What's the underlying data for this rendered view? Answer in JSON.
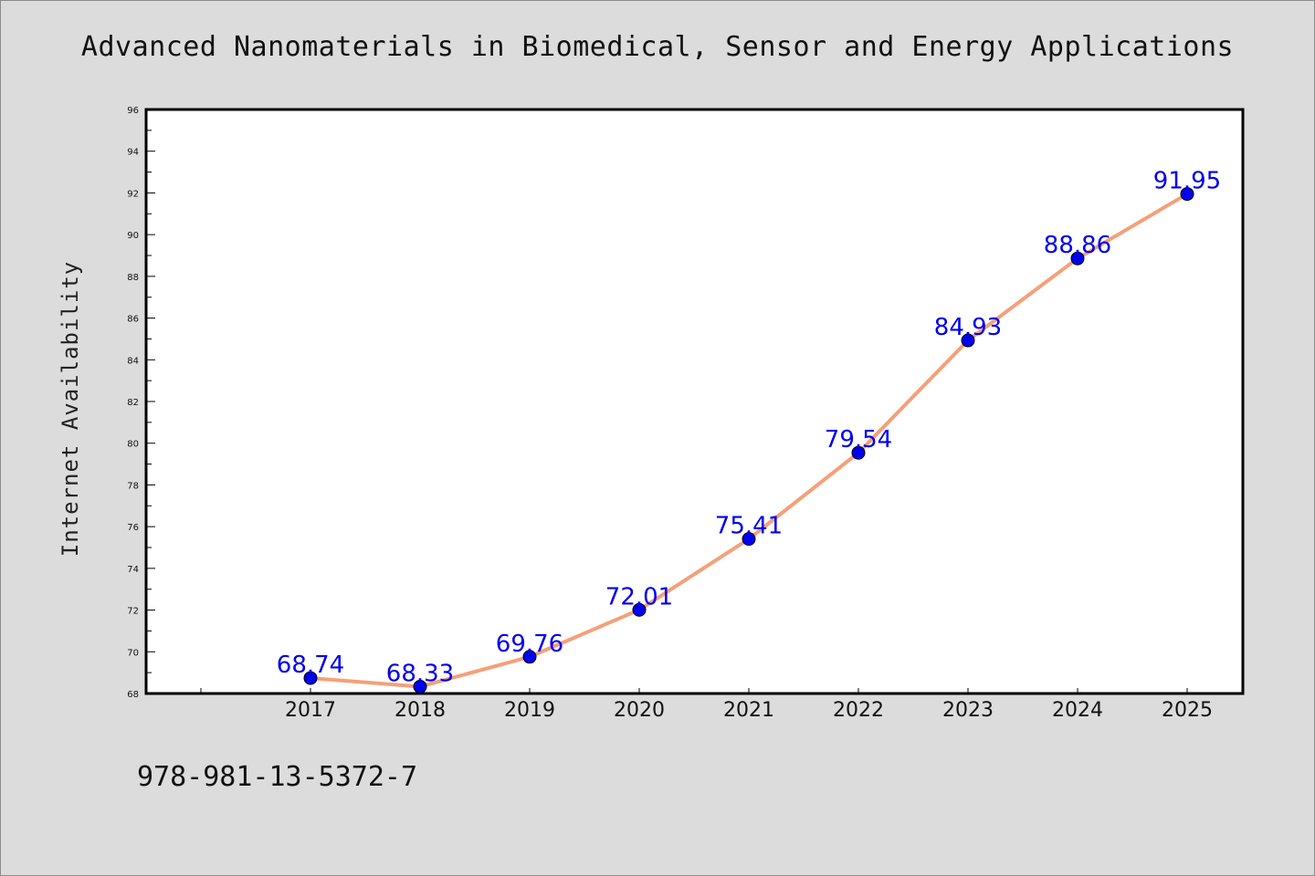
{
  "chart_data": {
    "type": "line",
    "title": "Advanced Nanomaterials in Biomedical, Sensor and Energy Applications",
    "xlabel": "",
    "ylabel": "Internet Availability",
    "x": [
      "2017",
      "2018",
      "2019",
      "2020",
      "2021",
      "2022",
      "2023",
      "2024",
      "2025"
    ],
    "values": [
      68.74,
      68.33,
      69.76,
      72.01,
      75.41,
      79.54,
      84.93,
      88.86,
      91.95
    ],
    "data_labels": [
      "68.74",
      "68.33",
      "69.76",
      "72.01",
      "75.41",
      "79.54",
      "84.93",
      "88.86",
      "91.95"
    ],
    "ylim": [
      68,
      96
    ],
    "yticks": [
      "68",
      "70",
      "72",
      "74",
      "76",
      "78",
      "80",
      "82",
      "84",
      "86",
      "88",
      "90",
      "92",
      "94",
      "96"
    ],
    "grid": false,
    "legend": "none",
    "colors": {
      "line": "#f4a07a",
      "marker": "#0000ee",
      "label": "#0000ee",
      "background": "#dcdcdc",
      "plot_bg": "#ffffff"
    }
  },
  "footer": {
    "isbn": "978-981-13-5372-7"
  }
}
